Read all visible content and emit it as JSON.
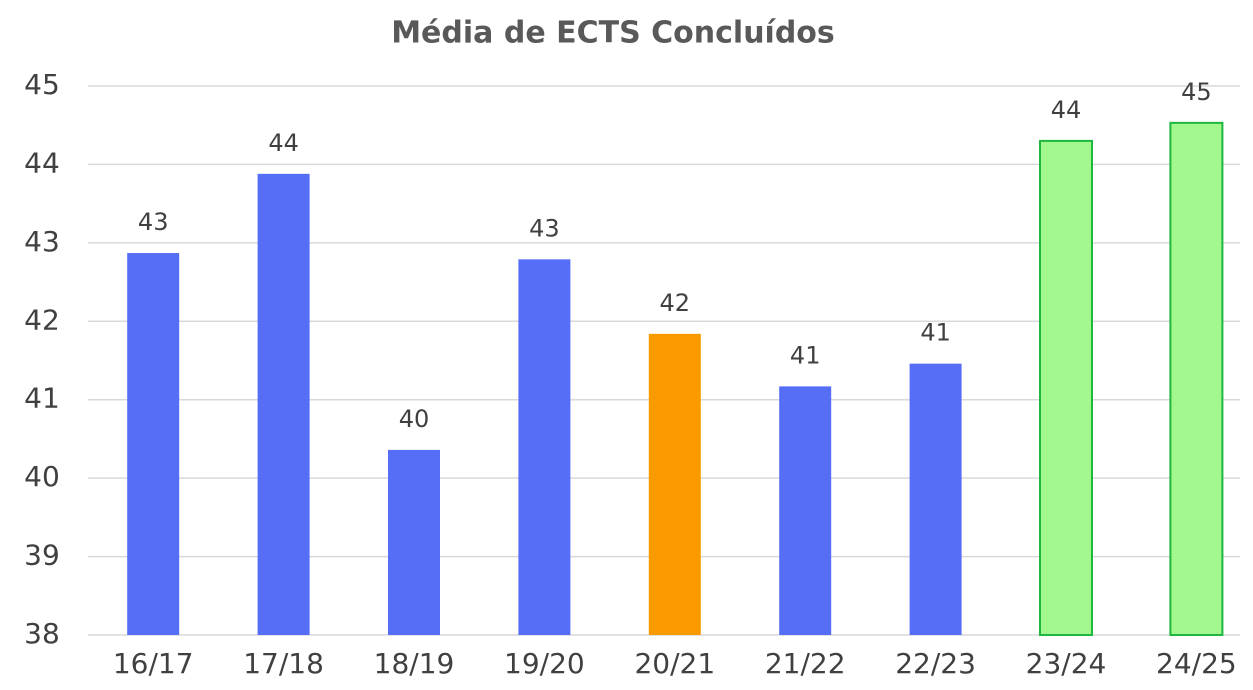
{
  "chart_data": {
    "type": "bar",
    "title": "Média de ECTS Concluídos",
    "categories": [
      "16/17",
      "17/18",
      "18/19",
      "19/20",
      "20/21",
      "21/22",
      "22/23",
      "23/24",
      "24/25"
    ],
    "values": [
      42.87,
      43.88,
      40.36,
      42.79,
      41.84,
      41.17,
      41.46,
      44.3,
      44.53
    ],
    "value_labels": [
      "43",
      "44",
      "40",
      "43",
      "42",
      "41",
      "41",
      "44",
      "45"
    ],
    "colors": [
      "#566ef5",
      "#566ef5",
      "#566ef5",
      "#566ef5",
      "#f99a00",
      "#566ef5",
      "#566ef5",
      "#a2f78d",
      "#a2f78d"
    ],
    "edgecolors": [
      null,
      null,
      null,
      null,
      null,
      null,
      null,
      "#1fb83f",
      "#1fb83f"
    ],
    "ylim": [
      38,
      45
    ],
    "yticks": [
      38,
      39,
      40,
      41,
      42,
      43,
      44,
      45
    ],
    "grid": true
  }
}
